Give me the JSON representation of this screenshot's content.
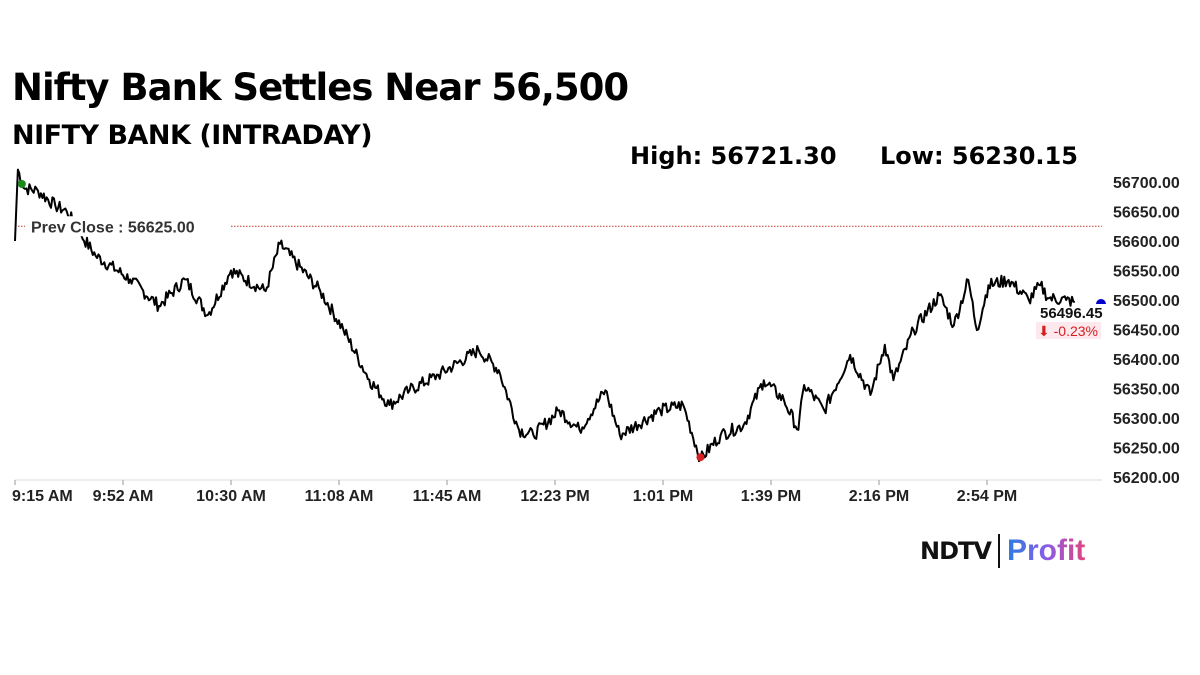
{
  "header": {
    "title": "Nifty Bank Settles Near 56,500",
    "subtitle": "NIFTY BANK (INTRADAY)",
    "high": "High: 56721.30",
    "low": "Low: 56230.15"
  },
  "logo": {
    "ndtv": "NDTV",
    "profit": "Profit"
  },
  "chart_data": {
    "type": "line",
    "title": "NIFTY BANK (INTRADAY)",
    "xlabel": "",
    "ylabel": "",
    "ylim": [
      56200,
      56700
    ],
    "y_ticks": [
      "56200.00",
      "56250.00",
      "56300.00",
      "56350.00",
      "56400.00",
      "56450.00",
      "56500.00",
      "56550.00",
      "56600.00",
      "56650.00",
      "56700.00"
    ],
    "x_ticks": [
      "9:15 AM",
      "9:52 AM",
      "10:30 AM",
      "11:08 AM",
      "11:45 AM",
      "12:23 PM",
      "1:01 PM",
      "1:39 PM",
      "2:16 PM",
      "2:54 PM"
    ],
    "x_unit": "minutes since 9:15 AM",
    "xlim": [
      0,
      375
    ],
    "prev_close": {
      "value": 56625.0,
      "label": "Prev Close : 56625.00"
    },
    "high_point": {
      "minute": 1,
      "value": 56721.3
    },
    "low_point": {
      "minute": 238,
      "value": 56230.15
    },
    "last": {
      "value": "56496.45",
      "change": "⬇ -0.23%"
    },
    "series": [
      {
        "name": "NIFTY BANK",
        "minutes": [
          0,
          1,
          3,
          8,
          14,
          18,
          23,
          28,
          40,
          50,
          59,
          67,
          75,
          87,
          92,
          106,
          114,
          123,
          130,
          137,
          147,
          161,
          168,
          175,
          180,
          189,
          196,
          205,
          210,
          224,
          232,
          238,
          245,
          253,
          260,
          267,
          272,
          274,
          281,
          290,
          297,
          302,
          305,
          312,
          321,
          326,
          331,
          334,
          338,
          345,
          352,
          356,
          359,
          365,
          368
        ],
        "values": [
          56600,
          56721,
          56690,
          56685,
          56660,
          56650,
          56610,
          56575,
          56535,
          56490,
          56535,
          56475,
          56550,
          56515,
          56595,
          56515,
          56450,
          56365,
          56322,
          56347,
          56373,
          56415,
          56381,
          56280,
          56271,
          56313,
          56280,
          56347,
          56271,
          56313,
          56322,
          56230,
          56271,
          56288,
          56364,
          56330,
          56280,
          56356,
          56313,
          56407,
          56339,
          56424,
          56364,
          56449,
          56508,
          56457,
          56534,
          56449,
          56525,
          56534,
          56500,
          56525,
          56503,
          56500,
          56496.45
        ]
      }
    ],
    "colors": {
      "line": "#000000",
      "prev_close": "#c0392b",
      "high": "#1a8a1a",
      "low": "#d42020",
      "last": "#0000cc",
      "change": "#d42020"
    }
  }
}
